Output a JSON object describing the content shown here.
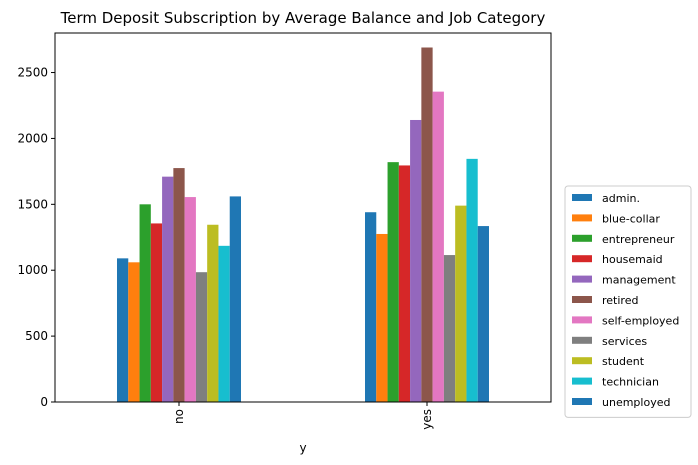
{
  "chart_data": {
    "type": "bar",
    "title": "Term Deposit Subscription by Average Balance and Job Category",
    "xlabel": "y",
    "ylabel": "",
    "categories": [
      "no",
      "yes"
    ],
    "ylim": [
      0,
      2800
    ],
    "yticks": [
      0,
      500,
      1000,
      1500,
      2000,
      2500
    ],
    "grid": false,
    "legend_position": "lower-right-outside",
    "series": [
      {
        "name": "admin.",
        "color": "#1f77b4",
        "values": [
          1090,
          1440
        ]
      },
      {
        "name": "blue-collar",
        "color": "#ff7f0e",
        "values": [
          1060,
          1275
        ]
      },
      {
        "name": "entrepreneur",
        "color": "#2ca02c",
        "values": [
          1500,
          1820
        ]
      },
      {
        "name": "housemaid",
        "color": "#d62728",
        "values": [
          1355,
          1795
        ]
      },
      {
        "name": "management",
        "color": "#9467bd",
        "values": [
          1710,
          2140
        ]
      },
      {
        "name": "retired",
        "color": "#8c564b",
        "values": [
          1775,
          2690
        ]
      },
      {
        "name": "self-employed",
        "color": "#e377c2",
        "values": [
          1555,
          2355
        ]
      },
      {
        "name": "services",
        "color": "#7f7f7f",
        "values": [
          985,
          1115
        ]
      },
      {
        "name": "student",
        "color": "#bcbd22",
        "values": [
          1345,
          1490
        ]
      },
      {
        "name": "technician",
        "color": "#17becf",
        "values": [
          1185,
          1845
        ]
      },
      {
        "name": "unemployed",
        "color": "#1f77b4",
        "values": [
          1560,
          1335
        ]
      }
    ]
  }
}
